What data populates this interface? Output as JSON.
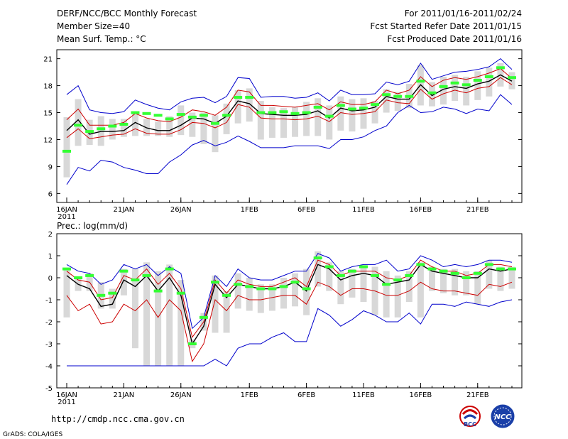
{
  "header": {
    "title": "DERF/NCC/BCC Monthly Forecast",
    "member_size": "Member Size=40",
    "variable": "Mean Surf. Temp.: °C",
    "period": "For 2011/01/16-2011/02/24",
    "started": "Fcst Started Refer Date 2011/01/15",
    "produced": "Fcst Produced Date 2011/01/16"
  },
  "footer": {
    "url": "http://cmdp.ncc.cma.gov.cn",
    "credit": "GrADS: COLA/IGES",
    "logo_bcc": "BCC",
    "logo_ncc": "NCC"
  },
  "chart_data": [
    {
      "type": "line",
      "title": "Mean Surf. Temp.: °C",
      "ylim": [
        5,
        22
      ],
      "yticks": [
        "6",
        "9",
        "12",
        "15",
        "18",
        "21"
      ],
      "ytick_values": [
        6,
        9,
        12,
        15,
        18,
        21
      ],
      "xlim": [
        0,
        39
      ],
      "xticks": [
        {
          "day": 0,
          "label": "16JAN"
        },
        {
          "day": 5,
          "label": "21JAN"
        },
        {
          "day": 10,
          "label": "26JAN"
        },
        {
          "day": 16,
          "label": "1FEB"
        },
        {
          "day": 21,
          "label": "6FEB"
        },
        {
          "day": 26,
          "label": "11FEB"
        },
        {
          "day": 31,
          "label": "16FEB"
        },
        {
          "day": 36,
          "label": "21FEB"
        }
      ],
      "year_label": "2011",
      "series": [
        {
          "name": "max",
          "color": "#0000cc",
          "values": [
            17.0,
            18.0,
            15.3,
            15.0,
            14.9,
            15.1,
            16.4,
            15.9,
            15.5,
            15.3,
            16.2,
            16.6,
            16.7,
            16.1,
            16.8,
            18.9,
            18.8,
            16.7,
            16.8,
            16.8,
            16.6,
            16.7,
            17.2,
            16.3,
            17.5,
            17.0,
            17.0,
            17.1,
            18.4,
            18.1,
            18.5,
            20.5,
            18.7,
            19.1,
            19.5,
            19.6,
            19.8,
            20.1,
            21.0,
            19.8
          ]
        },
        {
          "name": "upper",
          "color": "#cc0000",
          "values": [
            14.2,
            15.4,
            13.6,
            13.6,
            13.6,
            13.9,
            14.9,
            14.4,
            14.1,
            14.0,
            14.5,
            15.3,
            15.1,
            14.7,
            15.6,
            17.5,
            17.3,
            15.8,
            15.8,
            15.7,
            15.6,
            15.8,
            16.0,
            15.3,
            16.2,
            15.9,
            15.9,
            16.2,
            17.5,
            17.1,
            17.5,
            19.0,
            17.9,
            18.6,
            18.9,
            18.7,
            19.0,
            19.4,
            19.9,
            18.8
          ]
        },
        {
          "name": "mean",
          "color": "#000000",
          "values": [
            13.0,
            14.2,
            12.6,
            12.9,
            12.9,
            13.0,
            13.9,
            13.3,
            13.0,
            13.0,
            13.6,
            14.4,
            14.3,
            13.8,
            14.6,
            16.3,
            16.0,
            14.9,
            14.8,
            14.7,
            14.7,
            14.8,
            15.2,
            14.4,
            15.5,
            15.2,
            15.3,
            15.6,
            16.8,
            16.5,
            16.5,
            18.1,
            16.9,
            17.6,
            17.9,
            17.7,
            18.2,
            18.5,
            19.2,
            18.5
          ]
        },
        {
          "name": "lower",
          "color": "#cc0000",
          "values": [
            12.2,
            13.2,
            12.1,
            12.3,
            12.5,
            12.6,
            13.2,
            12.7,
            12.6,
            12.6,
            13.1,
            13.9,
            13.8,
            13.3,
            13.9,
            15.9,
            15.6,
            14.4,
            14.3,
            14.3,
            14.2,
            14.3,
            14.6,
            14.0,
            15.0,
            14.8,
            14.9,
            15.1,
            16.4,
            16.1,
            16.0,
            17.6,
            16.5,
            17.1,
            17.5,
            17.2,
            17.7,
            17.9,
            18.9,
            18.1
          ]
        },
        {
          "name": "min",
          "color": "#0000cc",
          "values": [
            7.0,
            8.9,
            8.5,
            9.7,
            9.5,
            8.9,
            8.6,
            8.2,
            8.2,
            9.5,
            10.3,
            11.4,
            11.9,
            11.3,
            11.7,
            12.4,
            11.8,
            11.1,
            11.1,
            11.1,
            11.3,
            11.3,
            11.3,
            11.0,
            12.0,
            12.0,
            12.3,
            13.0,
            13.5,
            15.0,
            15.8,
            15.0,
            15.1,
            15.6,
            15.4,
            14.9,
            15.4,
            15.2,
            17.0,
            15.9
          ]
        }
      ],
      "bars": {
        "name": "ensemble spread",
        "color": "#d8d8d8",
        "low": [
          7.8,
          11.3,
          11.4,
          11.3,
          12.0,
          12.3,
          12.4,
          12.4,
          12.4,
          12.3,
          12.5,
          12.3,
          11.5,
          10.6,
          12.6,
          13.8,
          14.0,
          12.0,
          12.2,
          12.2,
          12.3,
          12.4,
          12.4,
          12.0,
          13.0,
          12.9,
          13.2,
          13.8,
          15.0,
          15.2,
          15.5,
          15.8,
          15.7,
          15.9,
          16.3,
          15.8,
          16.4,
          16.8,
          17.9,
          17.6
        ],
        "high": [
          14.5,
          16.5,
          14.2,
          14.6,
          14.3,
          14.3,
          15.0,
          14.3,
          14.0,
          14.6,
          15.8,
          15.0,
          15.0,
          14.7,
          16.0,
          17.5,
          17.7,
          16.3,
          15.6,
          15.5,
          15.6,
          16.2,
          16.6,
          15.8,
          16.8,
          16.5,
          16.6,
          16.3,
          17.6,
          17.3,
          18.2,
          20.3,
          18.4,
          19.0,
          19.2,
          19.0,
          19.6,
          20.0,
          20.5,
          19.5
        ]
      },
      "observed_marks": {
        "name": "green markers",
        "color": "#33ff33",
        "values": [
          10.7,
          13.6,
          12.9,
          13.2,
          13.5,
          13.7,
          15.0,
          14.9,
          14.7,
          14.3,
          14.8,
          14.5,
          14.7,
          13.8,
          14.7,
          16.7,
          16.7,
          15.0,
          15.0,
          15.1,
          14.9,
          15.0,
          15.6,
          14.6,
          15.8,
          15.4,
          15.5,
          15.9,
          17.0,
          16.8,
          16.8,
          18.5,
          17.2,
          17.9,
          18.3,
          18.1,
          18.6,
          19.0,
          20.0,
          18.9
        ]
      }
    },
    {
      "type": "line",
      "title": "Prec.: log(mm/d)",
      "ylim": [
        -5,
        2
      ],
      "yticks": [
        "-5",
        "-4",
        "-3",
        "-2",
        "-1",
        "0",
        "1",
        "2"
      ],
      "ytick_values": [
        -5,
        -4,
        -3,
        -2,
        -1,
        0,
        1,
        2
      ],
      "xlim": [
        0,
        39
      ],
      "xticks": [
        {
          "day": 0,
          "label": "16JAN"
        },
        {
          "day": 5,
          "label": "21JAN"
        },
        {
          "day": 10,
          "label": "26JAN"
        },
        {
          "day": 16,
          "label": "1FEB"
        },
        {
          "day": 21,
          "label": "6FEB"
        },
        {
          "day": 26,
          "label": "11FEB"
        },
        {
          "day": 31,
          "label": "16FEB"
        },
        {
          "day": 36,
          "label": "21FEB"
        }
      ],
      "year_label": "2011",
      "series": [
        {
          "name": "max",
          "color": "#0000cc",
          "values": [
            0.6,
            0.3,
            0.2,
            -0.3,
            -0.1,
            0.6,
            0.4,
            0.6,
            0.1,
            0.5,
            0.2,
            -2.3,
            -1.8,
            0.1,
            -0.4,
            0.4,
            0.0,
            -0.1,
            -0.1,
            0.1,
            0.3,
            0.3,
            1.1,
            0.9,
            0.3,
            0.5,
            0.6,
            0.6,
            0.8,
            0.3,
            0.4,
            1.0,
            0.8,
            0.5,
            0.6,
            0.5,
            0.6,
            0.8,
            0.8,
            0.7
          ]
        },
        {
          "name": "upper",
          "color": "#cc0000",
          "values": [
            0.3,
            -0.1,
            -0.2,
            -1.0,
            -0.9,
            0.1,
            -0.1,
            0.4,
            -0.3,
            0.2,
            -0.5,
            -2.7,
            -2.0,
            -0.1,
            -0.7,
            -0.1,
            -0.3,
            -0.4,
            -0.4,
            -0.2,
            0.0,
            -0.4,
            0.8,
            0.6,
            0.1,
            0.3,
            0.3,
            0.3,
            0.0,
            -0.1,
            0.1,
            0.8,
            0.5,
            0.3,
            0.3,
            0.1,
            0.2,
            0.6,
            0.6,
            0.5
          ]
        },
        {
          "name": "mean",
          "color": "#000000",
          "values": [
            0.1,
            -0.3,
            -0.5,
            -1.3,
            -1.2,
            -0.1,
            -0.4,
            0.1,
            -0.6,
            0.0,
            -0.8,
            -3.0,
            -2.2,
            -0.3,
            -0.9,
            -0.3,
            -0.4,
            -0.5,
            -0.5,
            -0.4,
            -0.2,
            -0.6,
            0.6,
            0.4,
            -0.1,
            0.1,
            0.2,
            0.1,
            -0.3,
            -0.2,
            -0.1,
            0.6,
            0.3,
            0.2,
            0.1,
            0.0,
            0.0,
            0.4,
            0.3,
            0.4
          ]
        },
        {
          "name": "lower",
          "color": "#cc0000",
          "values": [
            -0.8,
            -1.5,
            -1.2,
            -2.1,
            -2.0,
            -1.2,
            -1.5,
            -1.0,
            -1.8,
            -1.0,
            -1.5,
            -3.8,
            -3.0,
            -1.0,
            -1.5,
            -0.8,
            -1.0,
            -1.0,
            -0.9,
            -0.8,
            -0.8,
            -1.2,
            -0.2,
            -0.4,
            -0.8,
            -0.5,
            -0.5,
            -0.6,
            -0.8,
            -0.8,
            -0.6,
            -0.2,
            -0.5,
            -0.6,
            -0.6,
            -0.7,
            -0.8,
            -0.3,
            -0.4,
            -0.2
          ]
        },
        {
          "name": "min",
          "color": "#0000cc",
          "values": [
            -4.0,
            -4.0,
            -4.0,
            -4.0,
            -4.0,
            -4.0,
            -4.0,
            -4.0,
            -4.0,
            -4.0,
            -4.0,
            -4.0,
            -4.0,
            -3.7,
            -4.0,
            -3.2,
            -3.0,
            -3.0,
            -2.7,
            -2.5,
            -2.9,
            -2.9,
            -1.4,
            -1.7,
            -2.2,
            -1.9,
            -1.5,
            -1.7,
            -2.0,
            -2.0,
            -1.6,
            -2.1,
            -1.2,
            -1.2,
            -1.3,
            -1.1,
            -1.2,
            -1.3,
            -1.1,
            -1.0
          ]
        }
      ],
      "bars": {
        "name": "ensemble spread",
        "color": "#d8d8d8",
        "low": [
          -1.8,
          -0.6,
          -0.6,
          -1.4,
          -1.4,
          -0.8,
          -3.2,
          -4.0,
          -4.0,
          -4.0,
          -4.0,
          -3.2,
          -2.4,
          -2.5,
          -2.5,
          -1.4,
          -1.5,
          -1.6,
          -1.5,
          -1.4,
          -1.3,
          -1.7,
          -0.4,
          -0.6,
          -1.2,
          -0.9,
          -1.1,
          -1.7,
          -1.8,
          -1.8,
          -1.1,
          -1.8,
          -0.6,
          -0.7,
          -0.8,
          -0.8,
          -1.2,
          -0.5,
          -0.6,
          -0.5
        ],
        "high": [
          0.4,
          0.0,
          0.2,
          -0.2,
          -0.5,
          0.4,
          0.4,
          0.7,
          0.3,
          0.6,
          -0.1,
          -2.8,
          -1.6,
          0.1,
          -0.6,
          0.2,
          0.0,
          -0.3,
          -0.3,
          0.0,
          0.2,
          0.4,
          1.2,
          0.7,
          0.3,
          0.4,
          0.6,
          0.5,
          0.3,
          0.1,
          0.3,
          0.7,
          0.5,
          0.4,
          0.4,
          0.3,
          0.3,
          0.8,
          0.5,
          0.5
        ]
      },
      "observed_marks": {
        "name": "green markers",
        "color": "#33ff33",
        "values": [
          0.4,
          0.0,
          0.1,
          -0.8,
          -0.7,
          0.3,
          -0.1,
          0.1,
          -0.6,
          0.4,
          -0.7,
          -3.0,
          -1.8,
          -0.2,
          -0.8,
          -0.3,
          -0.4,
          -0.5,
          -0.5,
          -0.4,
          -0.2,
          -0.5,
          0.9,
          0.5,
          0.1,
          0.3,
          0.5,
          0.1,
          -0.3,
          -0.1,
          0.1,
          0.6,
          0.4,
          0.3,
          0.2,
          0.0,
          0.2,
          0.6,
          0.4,
          0.4
        ]
      }
    }
  ]
}
